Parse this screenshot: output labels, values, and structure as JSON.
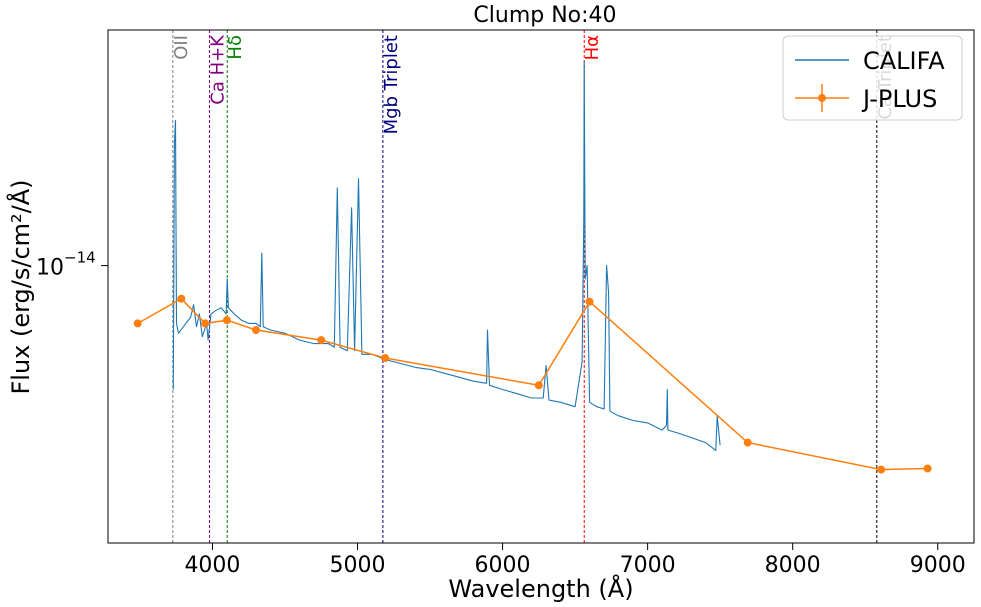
{
  "chart_data": {
    "type": "line",
    "title": "Clump No:40",
    "xlabel": "Wavelength (Å)",
    "ylabel": "Flux (erg/s/cm²/Å)",
    "yscale": "log",
    "y_tick_label": "10",
    "y_tick_exponent": "−14",
    "y_tick_value": 1e-14,
    "xlim": [
      3280,
      9250
    ],
    "ylim_log10": [
      -14.465,
      -13.605
    ],
    "x_ticks": [
      {
        "value": 4000,
        "label": "4000"
      },
      {
        "value": 5000,
        "label": "5000"
      },
      {
        "value": 6000,
        "label": "6000"
      },
      {
        "value": 7000,
        "label": "7000"
      },
      {
        "value": 8000,
        "label": "8000"
      },
      {
        "value": 9000,
        "label": "9000"
      }
    ],
    "legend": {
      "position": "top-right",
      "entries": [
        {
          "label": "CALIFA",
          "color": "#1f77b4",
          "kind": "line"
        },
        {
          "label": "J-PLUS",
          "color": "#ff7f0e",
          "kind": "line-marker"
        }
      ]
    },
    "reference_lines": [
      {
        "wavelength": 3727,
        "label": "OII",
        "color": "#808080",
        "line_color": "#7f7f7f"
      },
      {
        "wavelength": 3980,
        "label": "Ca H+K",
        "color": "#800080",
        "line_color": "#800080"
      },
      {
        "wavelength": 4102,
        "label": "Hδ",
        "color": "#008000",
        "line_color": "#008000"
      },
      {
        "wavelength": 5175,
        "label": "Mgb Triplet",
        "color": "#000080",
        "line_color": "#000080"
      },
      {
        "wavelength": 6563,
        "label": "Hα",
        "color": "#ff0000",
        "line_color": "#ff0000"
      },
      {
        "wavelength": 8580,
        "label": "Ca Triplet",
        "color": "#000000",
        "line_color": "#000000"
      }
    ],
    "series": [
      {
        "name": "J-PLUS",
        "color": "#ff7f0e",
        "x": [
          3485,
          3785,
          3950,
          4100,
          4300,
          4750,
          5190,
          6250,
          6600,
          7690,
          8610,
          8930
        ],
        "y": [
          8e-15,
          8.8e-15,
          8e-15,
          8.1e-15,
          7.8e-15,
          7.5e-15,
          7e-15,
          6.3e-15,
          8.7e-15,
          5.05e-15,
          4.55e-15,
          4.57e-15
        ]
      },
      {
        "name": "CALIFA",
        "color": "#1f77b4",
        "x": [
          3730,
          3738,
          3745,
          3752,
          3765,
          3800,
          3850,
          3870,
          3890,
          3910,
          3930,
          3945,
          3960,
          3970,
          3990,
          4020,
          4060,
          4095,
          4102,
          4110,
          4150,
          4200,
          4250,
          4300,
          4330,
          4340,
          4350,
          4400,
          4500,
          4600,
          4700,
          4800,
          4840,
          4861,
          4880,
          4930,
          4959,
          4980,
          5007,
          5030,
          5100,
          5200,
          5300,
          5400,
          5500,
          5600,
          5700,
          5800,
          5890,
          5896,
          5910,
          6000,
          6100,
          6200,
          6280,
          6300,
          6320,
          6400,
          6500,
          6548,
          6560,
          6563,
          6570,
          6583,
          6600,
          6650,
          6700,
          6717,
          6731,
          6740,
          6800,
          6900,
          7000,
          7100,
          7130,
          7136,
          7140,
          7200,
          7300,
          7400,
          7470,
          7480,
          7500
        ],
        "y": [
          6.2e-15,
          1.6e-14,
          1.75e-14,
          8e-15,
          7.7e-15,
          7.9e-15,
          8.2e-15,
          8.6e-15,
          7.9e-15,
          8.3e-15,
          7.6e-15,
          7.8e-15,
          8e-15,
          7.5e-15,
          8.3e-15,
          8.4e-15,
          8.5e-15,
          8.3e-15,
          9.5e-15,
          8.5e-15,
          8.3e-15,
          8.1e-15,
          8e-15,
          8e-15,
          7.9e-15,
          1.05e-14,
          7.9e-15,
          7.8e-15,
          7.7e-15,
          7.5e-15,
          7.4e-15,
          7.4e-15,
          7.3e-15,
          1.35e-14,
          7.3e-15,
          7.2e-15,
          1.25e-14,
          7.2e-15,
          1.4e-14,
          7.1e-15,
          7.1e-15,
          6.95e-15,
          6.85e-15,
          6.75e-15,
          6.7e-15,
          6.6e-15,
          6.5e-15,
          6.4e-15,
          6.35e-15,
          7.8e-15,
          6.3e-15,
          6.2e-15,
          6.1e-15,
          6e-15,
          6e-15,
          6.8e-15,
          5.95e-15,
          5.9e-15,
          5.8e-15,
          6.9e-15,
          1.2e-14,
          2.2e-14,
          9.5e-15,
          1e-14,
          5.9e-15,
          5.8e-15,
          5.75e-15,
          1e-14,
          9e-15,
          5.7e-15,
          5.6e-15,
          5.5e-15,
          5.45e-15,
          5.3e-15,
          5.4e-15,
          6.2e-15,
          5.3e-15,
          5.25e-15,
          5.15e-15,
          5.05e-15,
          4.9e-15,
          5.6e-15,
          5e-15
        ]
      }
    ]
  }
}
